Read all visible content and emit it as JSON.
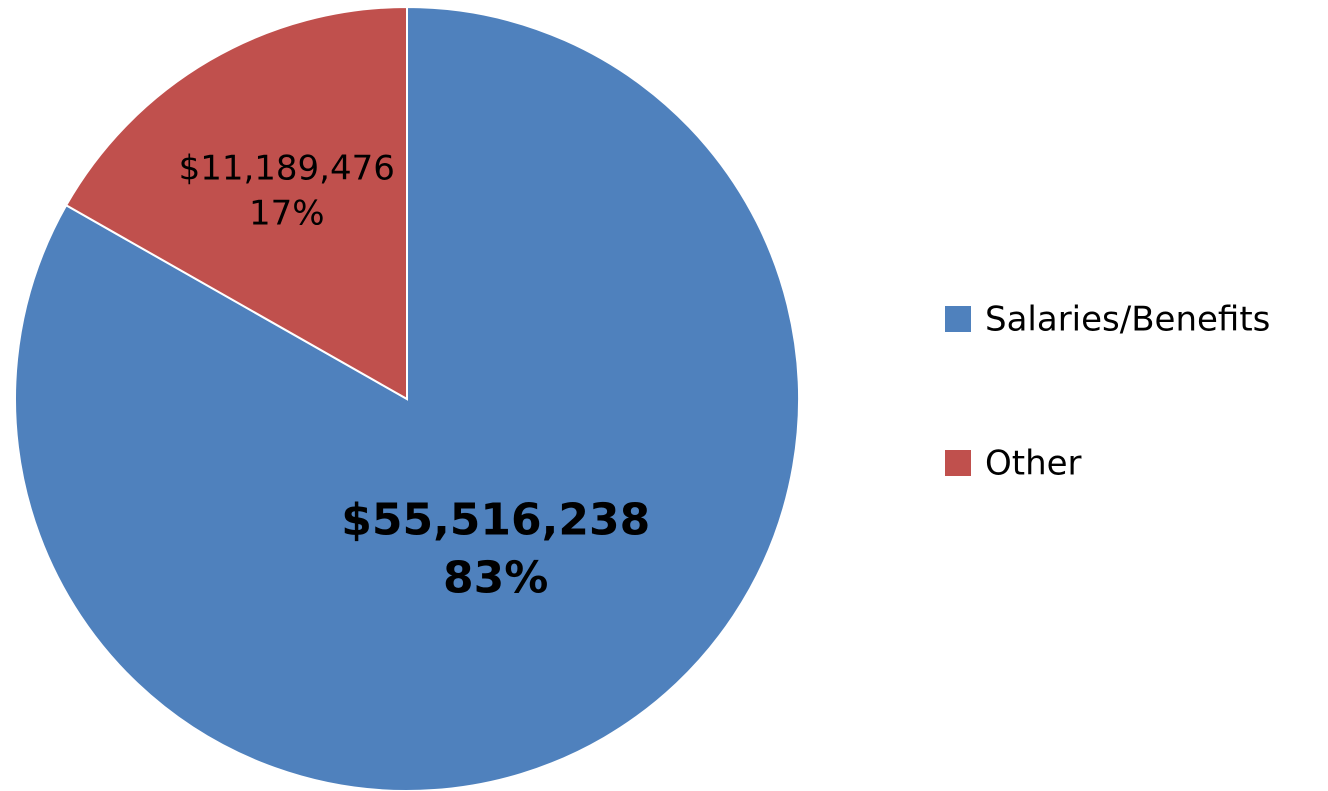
{
  "chart_data": {
    "type": "pie",
    "categories": [
      "Salaries/Benefits",
      "Other"
    ],
    "values": [
      55516238,
      11189476
    ],
    "value_labels": [
      "$55,516,238",
      "$11,189,476"
    ],
    "percent_labels": [
      "83%",
      "17%"
    ],
    "colors": [
      "#4f81bd",
      "#c0504d"
    ],
    "legend": "right"
  }
}
